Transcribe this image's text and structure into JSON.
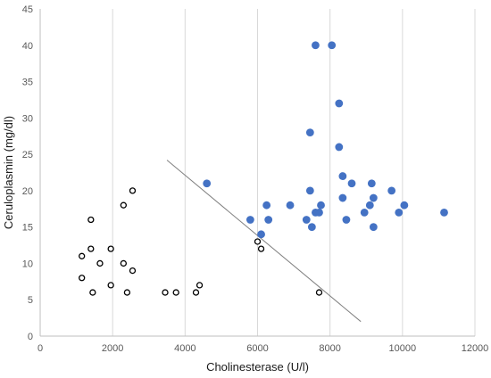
{
  "chart_data": {
    "type": "scatter",
    "title": "",
    "xlabel": "Cholinesterase (U/l)",
    "ylabel": "Ceruloplasmin (mg/dl)",
    "xlim": [
      0,
      12000
    ],
    "ylim": [
      0,
      45
    ],
    "x_ticks": [
      0,
      2000,
      4000,
      6000,
      8000,
      10000,
      12000
    ],
    "y_ticks": [
      0,
      5,
      10,
      15,
      20,
      25,
      30,
      35,
      40,
      45
    ],
    "grid": "vertical",
    "legend": "none",
    "series": [
      {
        "marker": "filled-circle",
        "color": "#4472C4",
        "points": [
          [
            4600,
            21
          ],
          [
            5800,
            16
          ],
          [
            6100,
            14
          ],
          [
            6250,
            18
          ],
          [
            6300,
            16
          ],
          [
            6900,
            18
          ],
          [
            7350,
            16
          ],
          [
            7450,
            28
          ],
          [
            7450,
            20
          ],
          [
            7500,
            15
          ],
          [
            7600,
            40
          ],
          [
            7600,
            17
          ],
          [
            7700,
            17
          ],
          [
            7750,
            18
          ],
          [
            8050,
            40
          ],
          [
            8250,
            32
          ],
          [
            8250,
            26
          ],
          [
            8350,
            22
          ],
          [
            8350,
            19
          ],
          [
            8450,
            16
          ],
          [
            8600,
            21
          ],
          [
            8950,
            17
          ],
          [
            9100,
            18
          ],
          [
            9150,
            21
          ],
          [
            9200,
            19
          ],
          [
            9200,
            15
          ],
          [
            9700,
            20
          ],
          [
            9900,
            17
          ],
          [
            10050,
            18
          ],
          [
            11150,
            17
          ]
        ]
      },
      {
        "marker": "open-circle",
        "color": "#000000",
        "points": [
          [
            1150,
            11
          ],
          [
            1150,
            8
          ],
          [
            1400,
            16
          ],
          [
            1400,
            12
          ],
          [
            1450,
            6
          ],
          [
            1650,
            10
          ],
          [
            1950,
            12
          ],
          [
            1950,
            7
          ],
          [
            2300,
            18
          ],
          [
            2300,
            10
          ],
          [
            2400,
            6
          ],
          [
            2550,
            20
          ],
          [
            2550,
            9
          ],
          [
            3450,
            6
          ],
          [
            3750,
            6
          ],
          [
            4300,
            6
          ],
          [
            4400,
            7
          ],
          [
            6000,
            13
          ],
          [
            6100,
            12
          ],
          [
            7700,
            6
          ]
        ]
      }
    ],
    "line": {
      "color": "#808080",
      "from": [
        3500,
        24.2
      ],
      "to": [
        8850,
        2
      ]
    }
  }
}
